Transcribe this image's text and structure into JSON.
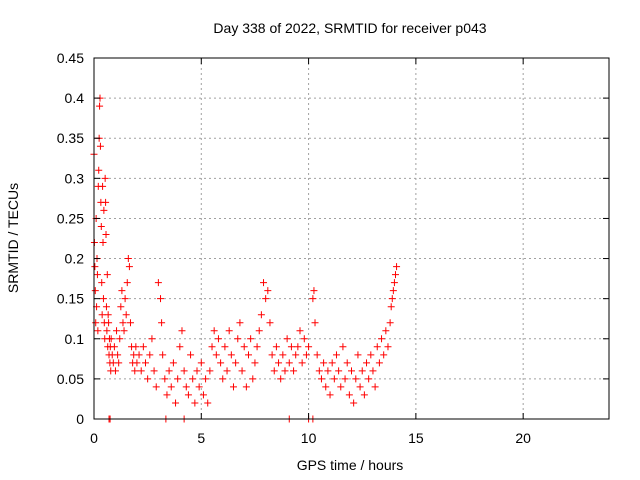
{
  "chart_data": {
    "type": "scatter",
    "title": "Day 338 of 2022, SRMTID for receiver p043",
    "xlabel": "GPS time / hours",
    "ylabel": "SRMTID / TECUs",
    "xlim": [
      0,
      24
    ],
    "ylim": [
      0,
      0.45
    ],
    "xticks": [
      0,
      5,
      10,
      15,
      20
    ],
    "xtick_labels": [
      "0",
      "5",
      "10",
      "15",
      "20"
    ],
    "yticks": [
      0,
      0.05,
      0.1,
      0.15,
      0.2,
      0.25,
      0.3,
      0.35,
      0.4,
      0.45
    ],
    "ytick_labels": [
      "0",
      "0.05",
      "0.1",
      "0.15",
      "0.2",
      "0.25",
      "0.3",
      "0.35",
      "0.4",
      "0.45"
    ],
    "grid": true,
    "series": [
      {
        "name": "SRMTID",
        "color": "#ff0000",
        "marker": "plus",
        "points": [
          [
            0.0,
            0.33
          ],
          [
            0.02,
            0.22
          ],
          [
            0.04,
            0.19
          ],
          [
            0.06,
            0.16
          ],
          [
            0.08,
            0.12
          ],
          [
            0.1,
            0.25
          ],
          [
            0.12,
            0.14
          ],
          [
            0.14,
            0.2
          ],
          [
            0.16,
            0.18
          ],
          [
            0.18,
            0.11
          ],
          [
            0.2,
            0.29
          ],
          [
            0.22,
            0.31
          ],
          [
            0.24,
            0.35
          ],
          [
            0.26,
            0.39
          ],
          [
            0.28,
            0.4
          ],
          [
            0.3,
            0.34
          ],
          [
            0.32,
            0.27
          ],
          [
            0.34,
            0.24
          ],
          [
            0.36,
            0.17
          ],
          [
            0.38,
            0.13
          ],
          [
            0.4,
            0.29
          ],
          [
            0.42,
            0.22
          ],
          [
            0.44,
            0.15
          ],
          [
            0.46,
            0.26
          ],
          [
            0.48,
            0.12
          ],
          [
            0.5,
            0.1
          ],
          [
            0.52,
            0.3
          ],
          [
            0.54,
            0.27
          ],
          [
            0.56,
            0.23
          ],
          [
            0.58,
            0.14
          ],
          [
            0.6,
            0.11
          ],
          [
            0.62,
            0.18
          ],
          [
            0.64,
            0.09
          ],
          [
            0.66,
            0.13
          ],
          [
            0.68,
            0.12
          ],
          [
            0.7,
            0.08
          ],
          [
            0.72,
            0.1
          ],
          [
            0.74,
            0.07
          ],
          [
            0.76,
            0.09
          ],
          [
            0.78,
            0.06
          ],
          [
            0.8,
            0.1
          ],
          [
            0.85,
            0.08
          ],
          [
            0.9,
            0.07
          ],
          [
            0.95,
            0.09
          ],
          [
            1.0,
            0.06
          ],
          [
            1.05,
            0.11
          ],
          [
            1.1,
            0.08
          ],
          [
            1.15,
            0.07
          ],
          [
            1.2,
            0.1
          ],
          [
            1.25,
            0.14
          ],
          [
            1.3,
            0.16
          ],
          [
            1.35,
            0.12
          ],
          [
            1.4,
            0.11
          ],
          [
            1.45,
            0.15
          ],
          [
            1.5,
            0.13
          ],
          [
            1.55,
            0.17
          ],
          [
            1.6,
            0.2
          ],
          [
            1.65,
            0.19
          ],
          [
            1.7,
            0.12
          ],
          [
            1.75,
            0.09
          ],
          [
            1.8,
            0.07
          ],
          [
            1.85,
            0.08
          ],
          [
            1.9,
            0.06
          ],
          [
            1.95,
            0.09
          ],
          [
            2.0,
            0.07
          ],
          [
            2.1,
            0.08
          ],
          [
            2.2,
            0.06
          ],
          [
            2.3,
            0.09
          ],
          [
            2.4,
            0.07
          ],
          [
            2.5,
            0.05
          ],
          [
            2.6,
            0.08
          ],
          [
            2.7,
            0.1
          ],
          [
            2.8,
            0.06
          ],
          [
            2.9,
            0.04
          ],
          [
            3.0,
            0.17
          ],
          [
            3.1,
            0.15
          ],
          [
            3.15,
            0.12
          ],
          [
            3.2,
            0.08
          ],
          [
            3.3,
            0.05
          ],
          [
            3.4,
            0.03
          ],
          [
            3.5,
            0.06
          ],
          [
            3.6,
            0.04
          ],
          [
            3.7,
            0.07
          ],
          [
            3.8,
            0.02
          ],
          [
            3.9,
            0.05
          ],
          [
            4.0,
            0.09
          ],
          [
            4.1,
            0.11
          ],
          [
            4.2,
            0.06
          ],
          [
            4.3,
            0.04
          ],
          [
            4.4,
            0.03
          ],
          [
            4.5,
            0.08
          ],
          [
            4.6,
            0.05
          ],
          [
            4.7,
            0.02
          ],
          [
            4.8,
            0.06
          ],
          [
            4.9,
            0.04
          ],
          [
            5.0,
            0.07
          ],
          [
            5.1,
            0.03
          ],
          [
            5.2,
            0.05
          ],
          [
            5.3,
            0.02
          ],
          [
            5.4,
            0.06
          ],
          [
            5.5,
            0.09
          ],
          [
            5.6,
            0.11
          ],
          [
            5.7,
            0.08
          ],
          [
            5.8,
            0.1
          ],
          [
            5.9,
            0.07
          ],
          [
            6.0,
            0.05
          ],
          [
            6.1,
            0.09
          ],
          [
            6.2,
            0.06
          ],
          [
            6.3,
            0.11
          ],
          [
            6.4,
            0.08
          ],
          [
            6.5,
            0.04
          ],
          [
            6.6,
            0.07
          ],
          [
            6.7,
            0.1
          ],
          [
            6.8,
            0.12
          ],
          [
            6.9,
            0.06
          ],
          [
            7.0,
            0.09
          ],
          [
            7.1,
            0.04
          ],
          [
            7.2,
            0.08
          ],
          [
            7.3,
            0.1
          ],
          [
            7.4,
            0.05
          ],
          [
            7.5,
            0.07
          ],
          [
            7.6,
            0.09
          ],
          [
            7.7,
            0.11
          ],
          [
            7.8,
            0.13
          ],
          [
            7.9,
            0.17
          ],
          [
            8.0,
            0.15
          ],
          [
            8.1,
            0.16
          ],
          [
            8.2,
            0.12
          ],
          [
            8.3,
            0.08
          ],
          [
            8.4,
            0.06
          ],
          [
            8.5,
            0.09
          ],
          [
            8.6,
            0.07
          ],
          [
            8.7,
            0.05
          ],
          [
            8.8,
            0.08
          ],
          [
            8.9,
            0.06
          ],
          [
            9.0,
            0.1
          ],
          [
            9.1,
            0.07
          ],
          [
            9.2,
            0.09
          ],
          [
            9.3,
            0.06
          ],
          [
            9.4,
            0.08
          ],
          [
            9.5,
            0.09
          ],
          [
            9.6,
            0.11
          ],
          [
            9.7,
            0.07
          ],
          [
            9.8,
            0.1
          ],
          [
            9.9,
            0.08
          ],
          [
            10.0,
            0.09
          ],
          [
            10.2,
            0.15
          ],
          [
            10.25,
            0.16
          ],
          [
            10.3,
            0.12
          ],
          [
            10.4,
            0.08
          ],
          [
            10.5,
            0.06
          ],
          [
            10.6,
            0.05
          ],
          [
            10.7,
            0.07
          ],
          [
            10.8,
            0.04
          ],
          [
            10.9,
            0.06
          ],
          [
            11.0,
            0.03
          ],
          [
            11.1,
            0.07
          ],
          [
            11.2,
            0.05
          ],
          [
            11.3,
            0.08
          ],
          [
            11.4,
            0.06
          ],
          [
            11.5,
            0.04
          ],
          [
            11.6,
            0.09
          ],
          [
            11.7,
            0.05
          ],
          [
            11.8,
            0.07
          ],
          [
            11.9,
            0.03
          ],
          [
            12.0,
            0.06
          ],
          [
            12.1,
            0.02
          ],
          [
            12.2,
            0.05
          ],
          [
            12.3,
            0.08
          ],
          [
            12.4,
            0.04
          ],
          [
            12.5,
            0.06
          ],
          [
            12.6,
            0.03
          ],
          [
            12.7,
            0.07
          ],
          [
            12.8,
            0.05
          ],
          [
            12.9,
            0.08
          ],
          [
            13.0,
            0.06
          ],
          [
            13.1,
            0.04
          ],
          [
            13.2,
            0.09
          ],
          [
            13.3,
            0.07
          ],
          [
            13.4,
            0.1
          ],
          [
            13.5,
            0.08
          ],
          [
            13.6,
            0.11
          ],
          [
            13.7,
            0.09
          ],
          [
            13.8,
            0.12
          ],
          [
            13.85,
            0.14
          ],
          [
            13.9,
            0.15
          ],
          [
            13.95,
            0.16
          ],
          [
            14.0,
            0.17
          ],
          [
            14.05,
            0.18
          ],
          [
            14.1,
            0.19
          ],
          [
            0.7,
            0.0
          ],
          [
            0.75,
            0.0
          ],
          [
            3.35,
            0.0
          ],
          [
            4.2,
            0.0
          ],
          [
            9.1,
            0.0
          ],
          [
            10.0,
            0.0
          ],
          [
            10.2,
            0.0
          ]
        ]
      }
    ]
  }
}
